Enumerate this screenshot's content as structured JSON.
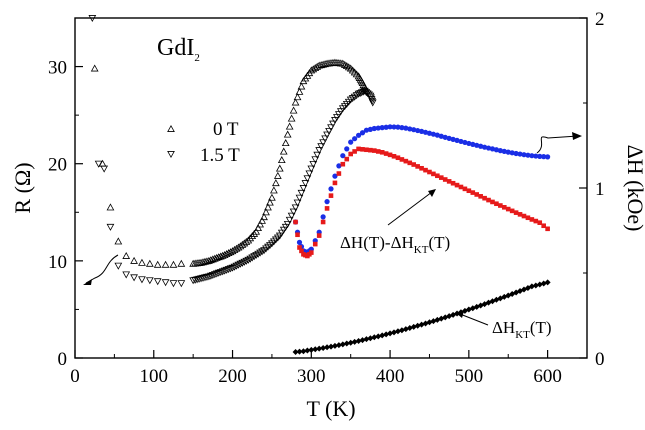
{
  "chart_data": {
    "type": "scatter",
    "sample_label": {
      "main": "GdI",
      "sub": "2"
    },
    "xlabel": "T (K)",
    "ylabel_left": "R (Ω)",
    "ylabel_right": "ΔH (kOe)",
    "xlim": [
      0,
      650
    ],
    "ylim_left": [
      0,
      35
    ],
    "ylim_right": [
      0,
      2
    ],
    "x_ticks": [
      0,
      100,
      200,
      300,
      400,
      500,
      600
    ],
    "y_left_ticks": [
      0,
      10,
      20,
      30
    ],
    "y_right_ticks": [
      0,
      1,
      2
    ],
    "legend": {
      "placement": "upper-left",
      "entries": [
        {
          "marker": "triangle-up",
          "label": "0  T"
        },
        {
          "marker": "triangle-down",
          "label": "1.5 T"
        }
      ]
    },
    "series": [
      {
        "name": "0  T",
        "axis": "left",
        "marker": "triangle-up",
        "color": "#000000",
        "points": [
          [
            25,
            29.8
          ],
          [
            35,
            20.0
          ],
          [
            45,
            15.5
          ],
          [
            55,
            12.0
          ],
          [
            65,
            10.5
          ],
          [
            75,
            10.0
          ],
          [
            85,
            9.8
          ],
          [
            95,
            9.7
          ],
          [
            105,
            9.6
          ],
          [
            115,
            9.6
          ],
          [
            125,
            9.6
          ],
          [
            135,
            9.7
          ],
          [
            150,
            9.7
          ],
          [
            160,
            9.8
          ],
          [
            170,
            10.0
          ],
          [
            180,
            10.3
          ],
          [
            190,
            10.6
          ],
          [
            200,
            11.0
          ],
          [
            210,
            11.5
          ],
          [
            220,
            12.1
          ],
          [
            230,
            13.0
          ],
          [
            240,
            14.5
          ],
          [
            250,
            16.5
          ],
          [
            260,
            19.5
          ],
          [
            270,
            23.0
          ],
          [
            280,
            26.3
          ],
          [
            290,
            28.5
          ],
          [
            300,
            29.6
          ],
          [
            310,
            30.1
          ],
          [
            320,
            30.3
          ],
          [
            330,
            30.4
          ],
          [
            340,
            30.3
          ],
          [
            350,
            29.8
          ],
          [
            360,
            29.0
          ],
          [
            365,
            28.3
          ],
          [
            370,
            27.5
          ]
        ]
      },
      {
        "name": "1.5 T",
        "axis": "left",
        "marker": "triangle-down",
        "color": "#000000",
        "points": [
          [
            22,
            35.0
          ],
          [
            30,
            20.0
          ],
          [
            37,
            19.5
          ],
          [
            45,
            13.5
          ],
          [
            55,
            9.5
          ],
          [
            65,
            8.6
          ],
          [
            75,
            8.3
          ],
          [
            85,
            8.1
          ],
          [
            95,
            8.0
          ],
          [
            105,
            7.9
          ],
          [
            115,
            7.8
          ],
          [
            125,
            7.7
          ],
          [
            135,
            7.7
          ],
          [
            150,
            8.0
          ],
          [
            160,
            8.2
          ],
          [
            170,
            8.4
          ],
          [
            180,
            8.7
          ],
          [
            190,
            9.0
          ],
          [
            200,
            9.3
          ],
          [
            210,
            9.7
          ],
          [
            220,
            10.1
          ],
          [
            230,
            10.6
          ],
          [
            240,
            11.1
          ],
          [
            250,
            11.8
          ],
          [
            260,
            12.6
          ],
          [
            270,
            13.8
          ],
          [
            280,
            15.5
          ],
          [
            290,
            17.5
          ],
          [
            300,
            19.5
          ],
          [
            310,
            21.4
          ],
          [
            320,
            23.0
          ],
          [
            330,
            24.5
          ],
          [
            340,
            25.7
          ],
          [
            350,
            26.6
          ],
          [
            360,
            27.2
          ],
          [
            368,
            27.5
          ],
          [
            375,
            27.0
          ],
          [
            378,
            26.3
          ]
        ]
      },
      {
        "name": "ΔH(T)",
        "axis": "right",
        "marker": "circle",
        "color": "#1a2ee6",
        "points": [
          [
            280,
            0.8
          ],
          [
            285,
            0.68
          ],
          [
            290,
            0.63
          ],
          [
            295,
            0.62
          ],
          [
            300,
            0.64
          ],
          [
            310,
            0.74
          ],
          [
            320,
            0.92
          ],
          [
            330,
            1.07
          ],
          [
            340,
            1.19
          ],
          [
            350,
            1.27
          ],
          [
            360,
            1.31
          ],
          [
            370,
            1.34
          ],
          [
            380,
            1.35
          ],
          [
            390,
            1.355
          ],
          [
            400,
            1.36
          ],
          [
            410,
            1.358
          ],
          [
            420,
            1.352
          ],
          [
            430,
            1.343
          ],
          [
            440,
            1.333
          ],
          [
            450,
            1.322
          ],
          [
            460,
            1.311
          ],
          [
            470,
            1.298
          ],
          [
            480,
            1.286
          ],
          [
            490,
            1.274
          ],
          [
            500,
            1.262
          ],
          [
            510,
            1.251
          ],
          [
            520,
            1.24
          ],
          [
            530,
            1.23
          ],
          [
            540,
            1.22
          ],
          [
            550,
            1.211
          ],
          [
            560,
            1.203
          ],
          [
            570,
            1.196
          ],
          [
            580,
            1.19
          ],
          [
            590,
            1.186
          ],
          [
            600,
            1.183
          ]
        ]
      },
      {
        "name": "ΔH(T)-ΔH_KT(T)",
        "axis": "right",
        "marker": "square",
        "color": "#e61a1a",
        "points": [
          [
            280,
            0.8
          ],
          [
            285,
            0.65
          ],
          [
            290,
            0.61
          ],
          [
            295,
            0.6
          ],
          [
            300,
            0.62
          ],
          [
            310,
            0.72
          ],
          [
            320,
            0.88
          ],
          [
            330,
            1.03
          ],
          [
            340,
            1.14
          ],
          [
            350,
            1.2
          ],
          [
            360,
            1.23
          ],
          [
            370,
            1.225
          ],
          [
            380,
            1.22
          ],
          [
            390,
            1.21
          ],
          [
            400,
            1.195
          ],
          [
            410,
            1.178
          ],
          [
            420,
            1.158
          ],
          [
            430,
            1.138
          ],
          [
            440,
            1.116
          ],
          [
            450,
            1.094
          ],
          [
            460,
            1.072
          ],
          [
            470,
            1.05
          ],
          [
            480,
            1.028
          ],
          [
            490,
            1.006
          ],
          [
            500,
            0.984
          ],
          [
            510,
            0.962
          ],
          [
            520,
            0.94
          ],
          [
            530,
            0.918
          ],
          [
            540,
            0.897
          ],
          [
            550,
            0.876
          ],
          [
            560,
            0.855
          ],
          [
            570,
            0.835
          ],
          [
            580,
            0.815
          ],
          [
            590,
            0.796
          ],
          [
            600,
            0.76
          ]
        ]
      },
      {
        "name": "ΔH_KT(T)",
        "axis": "right",
        "marker": "diamond",
        "color": "#000000",
        "points": [
          [
            280,
            0.035
          ],
          [
            290,
            0.04
          ],
          [
            300,
            0.048
          ],
          [
            310,
            0.055
          ],
          [
            320,
            0.063
          ],
          [
            330,
            0.071
          ],
          [
            340,
            0.08
          ],
          [
            350,
            0.09
          ],
          [
            360,
            0.1
          ],
          [
            370,
            0.111
          ],
          [
            380,
            0.122
          ],
          [
            390,
            0.133
          ],
          [
            400,
            0.145
          ],
          [
            410,
            0.157
          ],
          [
            420,
            0.17
          ],
          [
            430,
            0.183
          ],
          [
            440,
            0.196
          ],
          [
            450,
            0.21
          ],
          [
            460,
            0.224
          ],
          [
            470,
            0.239
          ],
          [
            480,
            0.254
          ],
          [
            490,
            0.269
          ],
          [
            500,
            0.285
          ],
          [
            510,
            0.301
          ],
          [
            520,
            0.317
          ],
          [
            530,
            0.334
          ],
          [
            540,
            0.351
          ],
          [
            550,
            0.368
          ],
          [
            560,
            0.385
          ],
          [
            570,
            0.403
          ],
          [
            580,
            0.421
          ],
          [
            590,
            0.432
          ],
          [
            600,
            0.445
          ]
        ]
      }
    ],
    "annotations": {
      "dh_minus_kt": {
        "pre": "ΔH(T)-ΔH",
        "sub": "KT",
        "post": "(T)"
      },
      "dh_kt": {
        "pre": "ΔH",
        "sub": "KT",
        "post": "(T)"
      }
    }
  }
}
